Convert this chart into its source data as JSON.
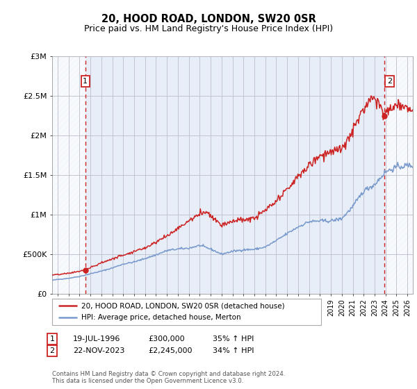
{
  "title": "20, HOOD ROAD, LONDON, SW20 0SR",
  "subtitle": "Price paid vs. HM Land Registry's House Price Index (HPI)",
  "ylim": [
    0,
    3000000
  ],
  "xlim": [
    1993.5,
    2026.5
  ],
  "ytick_vals": [
    0,
    500000,
    1000000,
    1500000,
    2000000,
    2500000,
    3000000
  ],
  "ytick_labels": [
    "£0",
    "£500K",
    "£1M",
    "£1.5M",
    "£2M",
    "£2.5M",
    "£3M"
  ],
  "sale1_date": 1996.54,
  "sale1_price": 300000,
  "sale2_date": 2023.89,
  "sale2_price": 2245000,
  "red_color": "#cc2222",
  "blue_color": "#7799cc",
  "plot_bg": "#e8eef8",
  "grid_color": "#bbbbcc",
  "legend_line1": "20, HOOD ROAD, LONDON, SW20 0SR (detached house)",
  "legend_line2": "HPI: Average price, detached house, Merton",
  "footnote": "Contains HM Land Registry data © Crown copyright and database right 2024.\nThis data is licensed under the Open Government Licence v3.0."
}
